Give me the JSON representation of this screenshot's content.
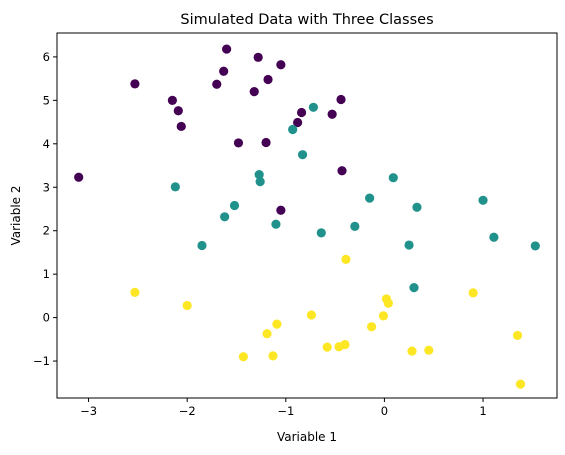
{
  "chart_data": {
    "type": "scatter",
    "title": "Simulated Data with Three Classes",
    "xlabel": "Variable 1",
    "ylabel": "Variable 2",
    "xlim": [
      -3.32,
      1.75
    ],
    "ylim": [
      -1.85,
      6.55
    ],
    "grid": false,
    "xticks": [
      -3,
      -2,
      -1,
      0,
      1
    ],
    "yticks": [
      -1,
      0,
      1,
      2,
      3,
      4,
      5,
      6
    ],
    "series": [
      {
        "color": "#440154",
        "points": [
          [
            -3.1,
            3.23
          ],
          [
            -2.53,
            5.38
          ],
          [
            -2.15,
            5.0
          ],
          [
            -2.09,
            4.76
          ],
          [
            -2.06,
            4.4
          ],
          [
            -1.7,
            5.37
          ],
          [
            -1.63,
            5.67
          ],
          [
            -1.6,
            6.18
          ],
          [
            -1.48,
            4.02
          ],
          [
            -1.32,
            5.2
          ],
          [
            -1.28,
            5.99
          ],
          [
            -1.18,
            5.48
          ],
          [
            -1.2,
            4.03
          ],
          [
            -1.05,
            5.82
          ],
          [
            -1.05,
            2.47
          ],
          [
            -0.88,
            4.49
          ],
          [
            -0.84,
            4.72
          ],
          [
            -0.53,
            4.68
          ],
          [
            -0.44,
            5.02
          ],
          [
            -0.43,
            3.38
          ]
        ]
      },
      {
        "color": "#21918c",
        "points": [
          [
            -2.12,
            3.01
          ],
          [
            -1.85,
            1.66
          ],
          [
            -1.62,
            2.32
          ],
          [
            -1.52,
            2.58
          ],
          [
            -1.27,
            3.29
          ],
          [
            -1.26,
            3.13
          ],
          [
            -1.1,
            2.15
          ],
          [
            -0.93,
            4.33
          ],
          [
            -0.83,
            3.75
          ],
          [
            -0.72,
            4.84
          ],
          [
            -0.64,
            1.95
          ],
          [
            -0.3,
            2.1
          ],
          [
            -0.15,
            2.75
          ],
          [
            0.09,
            3.22
          ],
          [
            0.25,
            1.67
          ],
          [
            0.3,
            0.69
          ],
          [
            0.33,
            2.54
          ],
          [
            1.0,
            2.7
          ],
          [
            1.11,
            1.85
          ],
          [
            1.53,
            1.65
          ]
        ]
      },
      {
        "color": "#fde725",
        "points": [
          [
            -2.53,
            0.58
          ],
          [
            -2.0,
            0.28
          ],
          [
            -1.43,
            -0.9
          ],
          [
            -1.19,
            -0.37
          ],
          [
            -1.13,
            -0.88
          ],
          [
            -1.09,
            -0.15
          ],
          [
            -0.74,
            0.06
          ],
          [
            -0.58,
            -0.68
          ],
          [
            -0.46,
            -0.67
          ],
          [
            -0.4,
            -0.62
          ],
          [
            -0.39,
            1.34
          ],
          [
            -0.13,
            -0.21
          ],
          [
            -0.01,
            0.04
          ],
          [
            0.02,
            0.43
          ],
          [
            0.04,
            0.33
          ],
          [
            0.28,
            -0.77
          ],
          [
            0.45,
            -0.75
          ],
          [
            0.9,
            0.57
          ],
          [
            1.35,
            -0.41
          ],
          [
            1.38,
            -1.53
          ]
        ]
      }
    ]
  }
}
